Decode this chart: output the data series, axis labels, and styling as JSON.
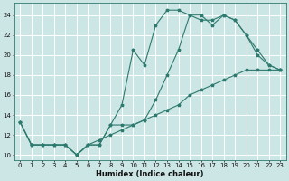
{
  "xlabel": "Humidex (Indice chaleur)",
  "bg_color": "#cce5e5",
  "line_color": "#2d7a6e",
  "grid_color": "#ffffff",
  "xlim": [
    -0.5,
    23.5
  ],
  "ylim": [
    9.5,
    25.2
  ],
  "xticks": [
    0,
    1,
    2,
    3,
    4,
    5,
    6,
    7,
    8,
    9,
    10,
    11,
    12,
    13,
    14,
    15,
    16,
    17,
    18,
    19,
    20,
    21,
    22,
    23
  ],
  "yticks": [
    10,
    12,
    14,
    16,
    18,
    20,
    22,
    24
  ],
  "line1": {
    "x": [
      0,
      1,
      2,
      3,
      4,
      5,
      6,
      7,
      8,
      9,
      10,
      11,
      12,
      13,
      14,
      15,
      16,
      17,
      18,
      19,
      20,
      21,
      22,
      23
    ],
    "y": [
      13.3,
      11.0,
      11.0,
      11.0,
      11.0,
      10.0,
      11.0,
      11.0,
      13.0,
      15.0,
      20.5,
      19.0,
      23.0,
      24.5,
      24.5,
      24.0,
      23.5,
      23.5,
      24.0,
      23.5,
      22.0,
      20.0,
      19.0,
      18.5
    ]
  },
  "line2": {
    "x": [
      0,
      1,
      2,
      3,
      4,
      5,
      6,
      7,
      8,
      9,
      10,
      11,
      12,
      13,
      14,
      15,
      16,
      17,
      18,
      19,
      20,
      21,
      22,
      23
    ],
    "y": [
      13.3,
      11.0,
      11.0,
      11.0,
      11.0,
      10.0,
      11.0,
      11.0,
      13.0,
      13.0,
      13.0,
      13.5,
      15.5,
      18.0,
      20.5,
      24.0,
      24.0,
      23.0,
      24.0,
      23.5,
      22.0,
      20.5,
      19.0,
      18.5
    ]
  },
  "line3": {
    "x": [
      0,
      1,
      2,
      3,
      4,
      5,
      6,
      7,
      8,
      9,
      10,
      11,
      12,
      13,
      14,
      15,
      16,
      17,
      18,
      19,
      20,
      21,
      22,
      23
    ],
    "y": [
      13.3,
      11.0,
      11.0,
      11.0,
      11.0,
      10.0,
      11.0,
      11.5,
      12.0,
      12.5,
      13.0,
      13.5,
      14.0,
      14.5,
      15.0,
      16.0,
      16.5,
      17.0,
      17.5,
      18.0,
      18.5,
      18.5,
      18.5,
      18.5
    ]
  }
}
